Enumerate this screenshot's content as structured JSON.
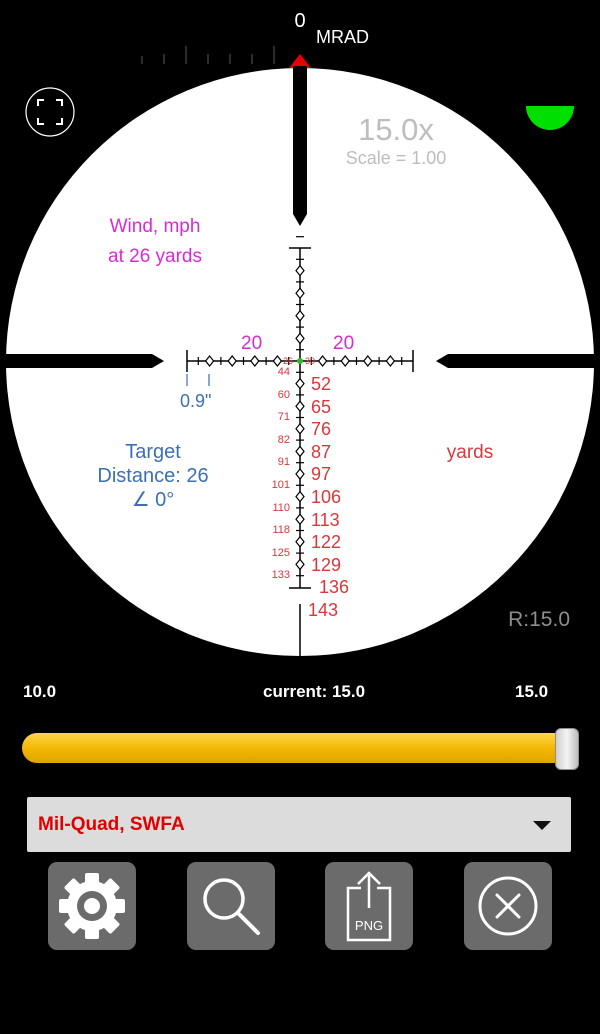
{
  "scope": {
    "zero_mark": "0",
    "unit": "MRAD",
    "magnification": "15.0x",
    "scale": "Scale = 1.00",
    "wind_title": "Wind, mph",
    "wind_distance": "at 26 yards",
    "wind_left": "20",
    "wind_right": "20",
    "spacing": "0.9\"",
    "target_title": "Target",
    "target_distance": "Distance: 26",
    "target_angle": "∠ 0°",
    "yards_label": "yards",
    "range_readout": "R:15.0",
    "center_left": "26",
    "center_right": "30",
    "small_ranges": [
      "44",
      "60",
      "71",
      "82",
      "91",
      "101",
      "110",
      "118",
      "125",
      "133"
    ],
    "large_ranges": [
      "52",
      "65",
      "76",
      "87",
      "97",
      "106",
      "113",
      "122",
      "129",
      "136",
      "143"
    ],
    "level_color": "#00e000"
  },
  "zoom": {
    "min": "10.0",
    "current": "current: 15.0",
    "max": "15.0",
    "value_fraction": 1.0
  },
  "reticle_select": {
    "selected": "Mil-Quad, SWFA"
  },
  "toolbar": {
    "settings_icon": "gear-icon",
    "zoom_icon": "magnifier-icon",
    "export_label": "PNG",
    "close_icon": "close-circle-icon"
  }
}
